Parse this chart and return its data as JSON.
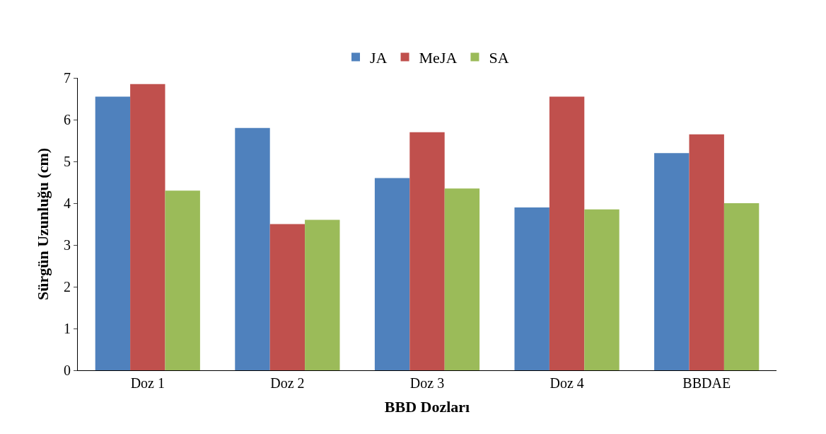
{
  "chart_data": {
    "type": "bar",
    "xlabel": "BBD Dozları",
    "ylabel": "Sürgün Uzunluğu (cm)",
    "categories": [
      "Doz 1",
      "Doz 2",
      "Doz 3",
      "Doz 4",
      "BBDAE"
    ],
    "series": [
      {
        "name": "JA",
        "color": "#4f81bd",
        "values": [
          6.55,
          5.8,
          4.6,
          3.9,
          5.2
        ]
      },
      {
        "name": "MeJA",
        "color": "#c0504d",
        "values": [
          6.85,
          3.5,
          5.7,
          6.55,
          5.65
        ]
      },
      {
        "name": "SA",
        "color": "#9bbb59",
        "values": [
          4.3,
          3.6,
          4.35,
          3.85,
          4.0
        ]
      }
    ],
    "ylim": [
      0,
      7
    ],
    "yticks": [
      0,
      1,
      2,
      3,
      4,
      5,
      6,
      7
    ],
    "grid": false,
    "legend": "top"
  }
}
